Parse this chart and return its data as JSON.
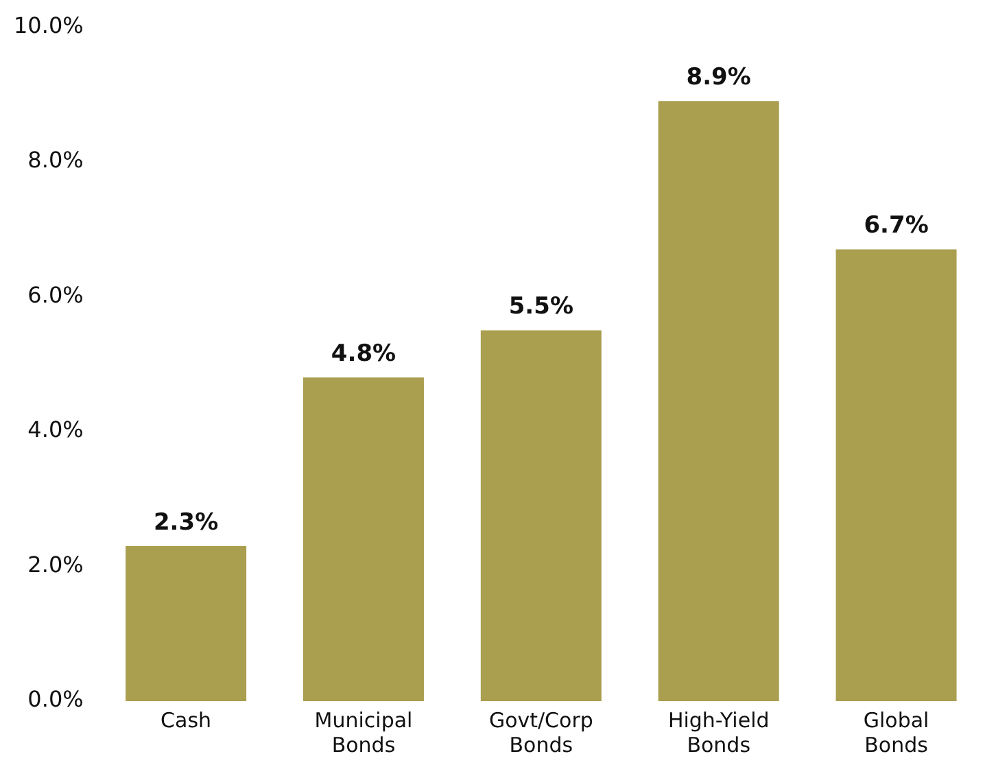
{
  "chart_data": {
    "type": "bar",
    "categories": [
      "Cash",
      "Municipal Bonds",
      "Govt/Corp Bonds",
      "High-Yield Bonds",
      "Global Bonds"
    ],
    "values": [
      2.3,
      4.8,
      5.5,
      8.9,
      6.7
    ],
    "value_labels": [
      "2.3%",
      "4.8%",
      "5.5%",
      "8.9%",
      "6.7%"
    ],
    "color": "#aa9e4f",
    "ylim": [
      0,
      10
    ],
    "yticks": [
      {
        "value": 0,
        "label": "0.0%"
      },
      {
        "value": 2,
        "label": "2.0%"
      },
      {
        "value": 4,
        "label": "4.0%"
      },
      {
        "value": 6,
        "label": "6.0%"
      },
      {
        "value": 8,
        "label": "8.0%"
      },
      {
        "value": 10,
        "label": "10.0%"
      }
    ],
    "grid": false,
    "legend": false
  }
}
